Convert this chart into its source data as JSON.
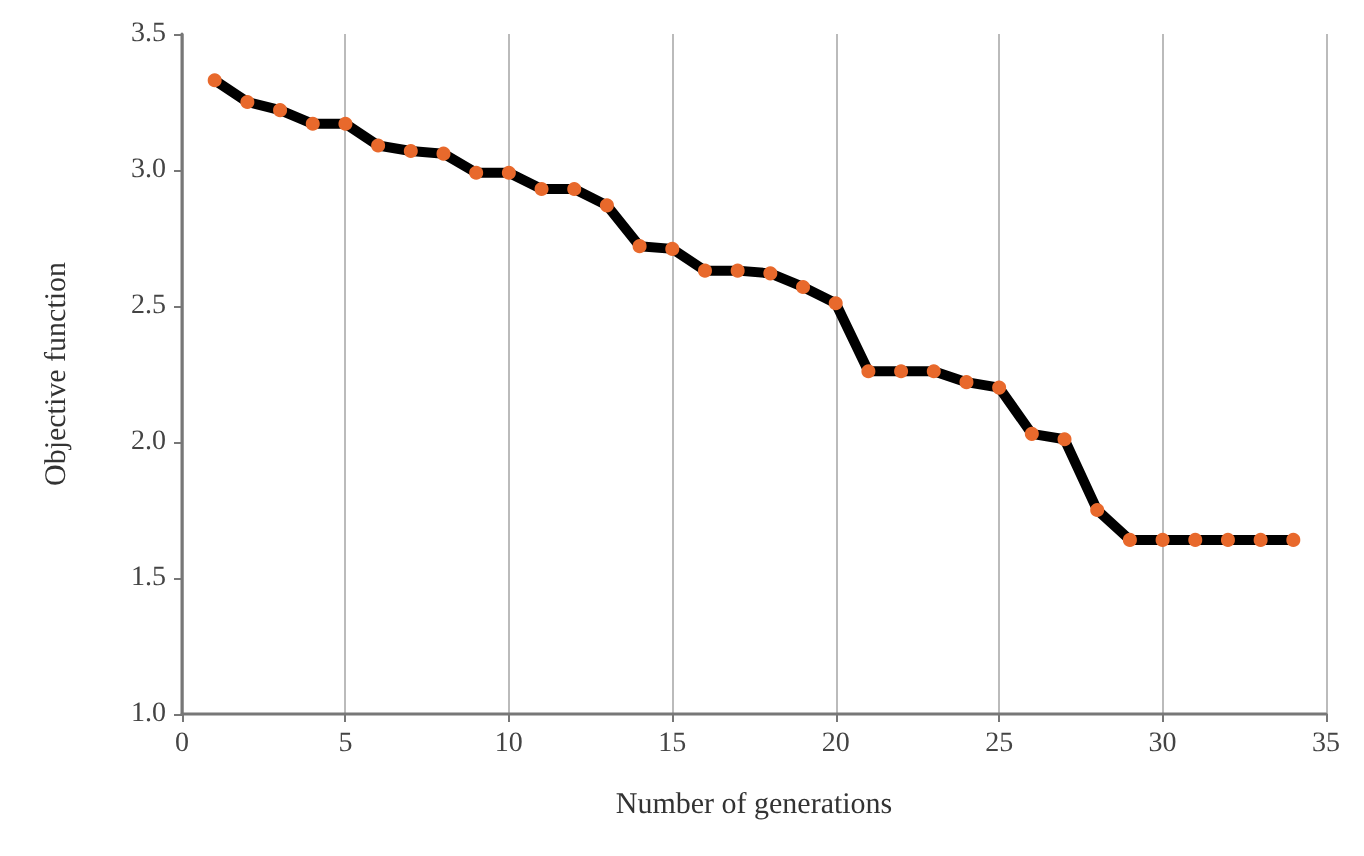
{
  "chart_data": {
    "type": "line",
    "xlabel": "Number of generations",
    "ylabel": "Objective function",
    "x": [
      1,
      2,
      3,
      4,
      5,
      6,
      7,
      8,
      9,
      10,
      11,
      12,
      13,
      14,
      15,
      16,
      17,
      18,
      19,
      20,
      21,
      22,
      23,
      24,
      25,
      26,
      27,
      28,
      29,
      30,
      31,
      32,
      33,
      34
    ],
    "series": [
      {
        "color": "#000000",
        "colors": [
          "#e8692c",
          "#e8692c",
          "#e8692c",
          "#e8692c",
          "#e8692c",
          "#e8692c",
          "#e8692c",
          "#e8692c",
          "#e8692c",
          "#e8692c",
          "#e8692c",
          "#e8692c",
          "#e8692c",
          "#e8692c",
          "#e8692c",
          "#e8692c",
          "#e8692c",
          "#e8692c",
          "#e8692c",
          "#e8692c",
          "#e8692c",
          "#e8692c",
          "#e8692c",
          "#e8692c",
          "#e8692c",
          "#e8692c",
          "#e8692c",
          "#e8692c",
          "#e8692c",
          "#e8692c",
          "#e8692c",
          "#e8692c",
          "#e8692c",
          "#e8692c"
        ],
        "values": [
          3.33,
          3.25,
          3.22,
          3.17,
          3.17,
          3.09,
          3.07,
          3.06,
          2.99,
          2.99,
          2.93,
          2.93,
          2.87,
          2.72,
          2.71,
          2.63,
          2.63,
          2.62,
          2.57,
          2.51,
          2.26,
          2.26,
          2.26,
          2.22,
          2.2,
          2.03,
          2.01,
          1.75,
          1.64,
          1.64,
          1.64,
          1.64,
          1.64,
          1.64
        ]
      }
    ],
    "xlim": [
      0,
      35
    ],
    "xticks": [
      0,
      5,
      10,
      15,
      20,
      25,
      30,
      35
    ],
    "ylim": [
      1.0,
      3.5
    ],
    "yticks": [
      {
        "value": 1.0,
        "label": "1.0"
      },
      {
        "value": 1.5,
        "label": "1.5"
      },
      {
        "value": 2.0,
        "label": "2.0"
      },
      {
        "value": 2.5,
        "label": "2.5"
      },
      {
        "value": 3.0,
        "label": "3.0"
      },
      {
        "value": 3.5,
        "label": "3.5"
      }
    ],
    "grid": "x",
    "marker": "circle",
    "line_style": "solid"
  }
}
